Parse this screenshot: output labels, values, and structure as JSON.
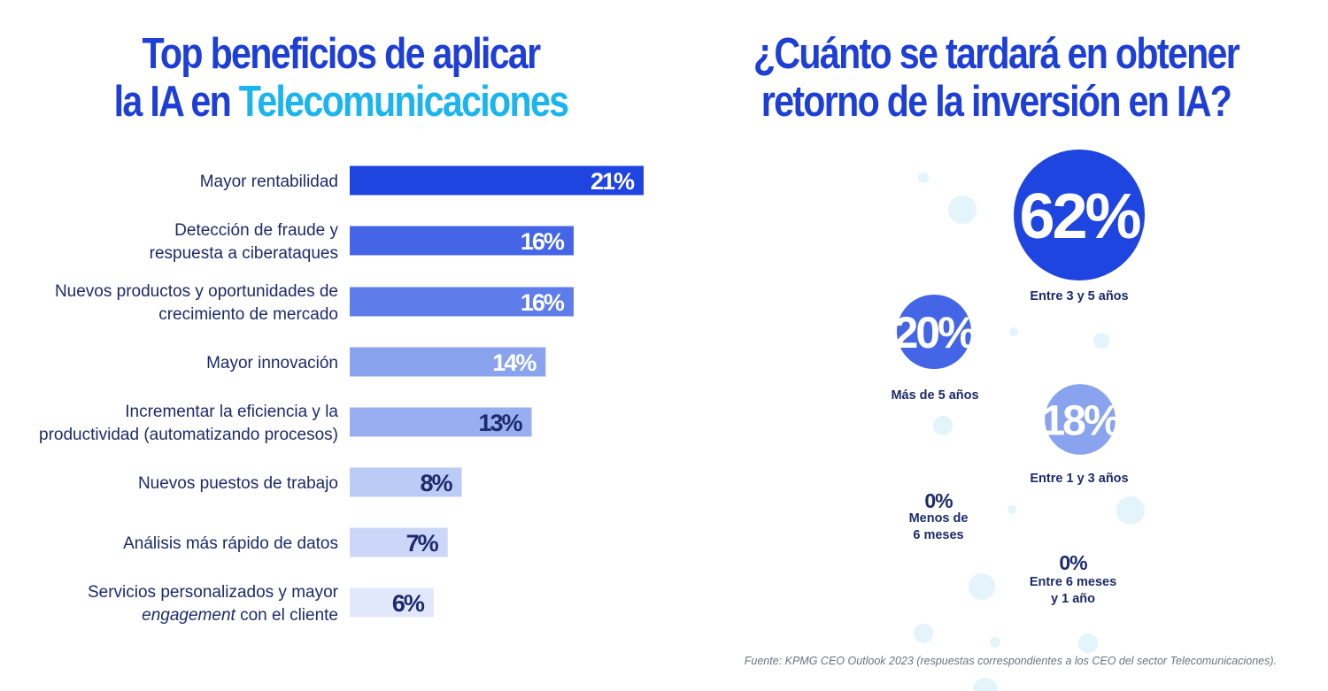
{
  "left": {
    "title_line1": "Top beneficios de aplicar",
    "title_line2_prefix": "la IA en ",
    "title_line2_accent": "Telecomunicaciones"
  },
  "right": {
    "title_line1": "¿Cuánto se tardará en obtener",
    "title_line2": "retorno de la inversión en IA?"
  },
  "colors": {
    "title": "#1e3fd6",
    "accent": "#1ab4ee",
    "text": "#1d2a6b",
    "decor_dot": "#e3f4fb"
  },
  "chart_data": [
    {
      "type": "bar",
      "orientation": "horizontal",
      "categories": [
        [
          "Mayor rentabilidad"
        ],
        [
          "Detección de fraude y",
          "respuesta a ciberataques"
        ],
        [
          "Nuevos productos y oportunidades de",
          "crecimiento de mercado"
        ],
        [
          "Mayor innovación"
        ],
        [
          "Incrementar la eficiencia y la",
          "productividad (automatizando procesos)"
        ],
        [
          "Nuevos puestos de trabajo"
        ],
        [
          "Análisis más rápido de datos"
        ],
        [
          "Servicios personalizados y mayor",
          "engagement con el cliente"
        ]
      ],
      "values": [
        21,
        16,
        16,
        14,
        13,
        8,
        7,
        6
      ],
      "value_labels": [
        "21%",
        "16%",
        "16%",
        "14%",
        "13%",
        "8%",
        "7%",
        "6%"
      ],
      "bar_colors": [
        "#1f45e0",
        "#4466e6",
        "#5e7dea",
        "#8aa3ef",
        "#99aef1",
        "#bccaf6",
        "#cbd6f8",
        "#e2e8fb"
      ],
      "label_colors": [
        "#ffffff",
        "#ffffff",
        "#ffffff",
        "#ffffff",
        "#1d2a6b",
        "#1d2a6b",
        "#1d2a6b",
        "#1d2a6b"
      ],
      "italic_word": "engagement",
      "unit": "%"
    },
    {
      "type": "bubble",
      "items": [
        {
          "label": "Entre 3 y 5 años",
          "value": 62,
          "value_label": "62%",
          "color": "#1f45e0"
        },
        {
          "label": "Más de 5 años",
          "value": 20,
          "value_label": "20%",
          "color": "#4466e6"
        },
        {
          "label": "Entre 1 y 3 años",
          "value": 18,
          "value_label": "18%",
          "color": "#8aa3ef"
        },
        {
          "label": "Menos de 6 meses",
          "value": 0,
          "value_label": "0%",
          "color": null
        },
        {
          "label": "Entre 6 meses y 1 año",
          "value": 0,
          "value_label": "0%",
          "color": null
        }
      ]
    }
  ],
  "source": "Fuente: KPMG CEO Outlook 2023 (respuestas correspondientes a los CEO del sector Telecomunicaciones)."
}
